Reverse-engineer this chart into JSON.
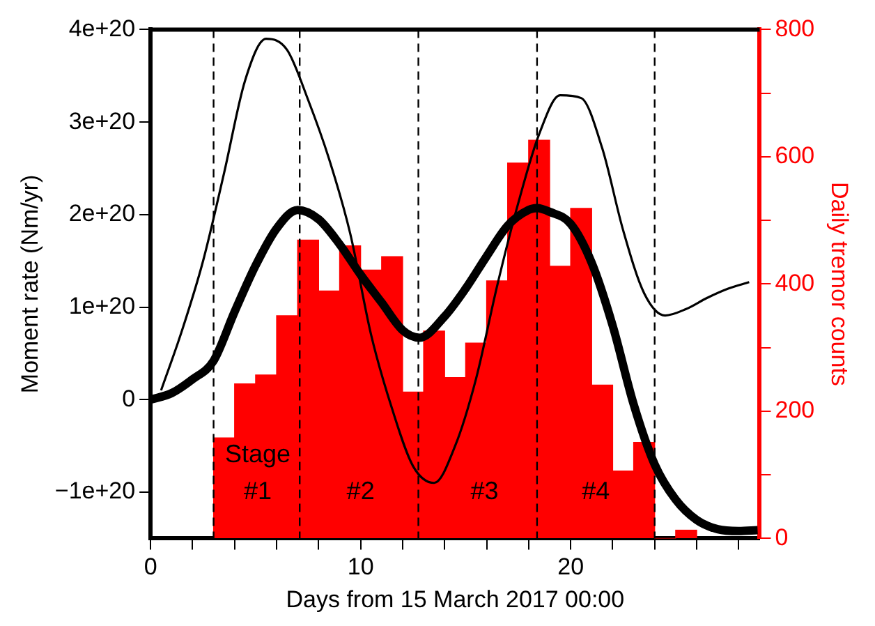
{
  "chart_data": {
    "type": "line",
    "xlabel": "Days from 15 March 2017 00:00",
    "ylabel": "Moment rate (Nm/yr)",
    "y2label": "Daily tremor counts",
    "xlim": [
      0,
      29
    ],
    "xticks": [
      0,
      {
        "value": 2,
        "label": null
      },
      {
        "value": 4,
        "label": null
      },
      {
        "value": 6,
        "label": null
      },
      {
        "value": 8,
        "label": null
      },
      10,
      {
        "value": 12,
        "label": null
      },
      {
        "value": 14,
        "label": null
      },
      {
        "value": 16,
        "label": null
      },
      {
        "value": 18,
        "label": null
      },
      20,
      {
        "value": 22,
        "label": null
      },
      {
        "value": 24,
        "label": null
      },
      {
        "value": 26,
        "label": null
      },
      {
        "value": 28,
        "label": null
      }
    ],
    "ylim": [
      -1.5e+20,
      4e+20
    ],
    "yticks": [
      {
        "value": -1e+20,
        "label": "−1e+20"
      },
      {
        "value": 0,
        "label": "0"
      },
      {
        "value": 1e+20,
        "label": "1e+20"
      },
      {
        "value": 2e+20,
        "label": "2e+20"
      },
      {
        "value": 3e+20,
        "label": "3e+20"
      },
      {
        "value": 4e+20,
        "label": "4e+20"
      }
    ],
    "y2lim": [
      0,
      800
    ],
    "y2ticks": [
      0,
      {
        "value": 100,
        "label": null
      },
      200,
      {
        "value": 300,
        "label": null
      },
      400,
      {
        "value": 500,
        "label": null
      },
      600,
      {
        "value": 700,
        "label": null
      },
      800
    ],
    "series": [
      {
        "type": "bar",
        "axis": "y2",
        "color": "#ff0000",
        "x": [
          3.5,
          4.5,
          5.5,
          6.5,
          7.5,
          8.5,
          9.5,
          10.5,
          11.5,
          12.5,
          13.5,
          14.5,
          15.5,
          16.5,
          17.5,
          18.5,
          19.5,
          20.5,
          21.5,
          22.5,
          23.5,
          24.5,
          25.5
        ],
        "values": [
          158,
          243,
          257,
          350,
          469,
          389,
          460,
          422,
          443,
          230,
          326,
          253,
          307,
          405,
          590,
          626,
          428,
          519,
          241,
          106,
          151,
          0,
          13
        ]
      },
      {
        "color": "#000000",
        "x": [
          0.5,
          1.5,
          2.5,
          3.5,
          4.5,
          5.5,
          6.5,
          7.5,
          8.5,
          9.5,
          10.5,
          11.5,
          12.5,
          13.5,
          14.5,
          15.5,
          16.5,
          17.5,
          18.5,
          19.5,
          20.5,
          21.5,
          22.5,
          23.5,
          24.5,
          25.5,
          26.5,
          27.5,
          28.5
        ],
        "values": [
          1e+19,
          7.5e+19,
          1.5e+20,
          2.45e+20,
          3.45e+20,
          3.9e+20,
          3.78e+20,
          3.24e+20,
          2.6e+20,
          1.8e+20,
          7e+19,
          -1e+19,
          -7.2e+19,
          -9e+19,
          -5e+19,
          2.3e+19,
          1.23e+20,
          2.12e+20,
          2.87e+20,
          3.29e+20,
          3.26e+20,
          2.72e+20,
          1.83e+20,
          1.15e+20,
          9.1e+19,
          9.8e+19,
          1.1e+20,
          1.2e+20,
          1.27e+20
        ]
      },
      {
        "color": "#000000",
        "x": [
          0,
          1,
          2,
          3,
          4,
          5,
          6,
          7,
          8,
          9,
          10,
          11,
          12,
          12.8,
          14,
          15,
          16,
          17,
          18,
          18.4,
          19,
          20,
          21,
          22,
          23,
          24,
          25,
          26,
          27,
          28,
          28.9
        ],
        "values": [
          0,
          7e+18,
          2.2e+19,
          4.2e+19,
          9.5e+19,
          1.45e+20,
          1.85e+20,
          2.05e+20,
          1.95e+20,
          1.68e+20,
          1.35e+20,
          1.05e+20,
          7.5e+19,
          6.7e+19,
          9e+19,
          1.2e+20,
          1.55e+20,
          1.88e+20,
          2.05e+20,
          2.07e+20,
          2.03e+20,
          1.9e+20,
          1.48e+20,
          8e+19,
          -5e+18,
          -7e+19,
          -1.08e+20,
          -1.3e+20,
          -1.4e+20,
          -1.42e+20,
          -1.41e+20
        ]
      }
    ],
    "ref_lines": [
      {
        "axis": "x",
        "value": 3,
        "color": "#000000",
        "line_style": "dashed"
      },
      {
        "axis": "x",
        "value": 7.1,
        "color": "#000000",
        "line_style": "dashed"
      },
      {
        "axis": "x",
        "value": 12.75,
        "color": "#000000",
        "line_style": "dashed"
      },
      {
        "axis": "x",
        "value": 18.4,
        "color": "#000000",
        "line_style": "dashed"
      },
      {
        "axis": "x",
        "value": 24,
        "color": "#000000",
        "line_style": "dashed"
      }
    ],
    "annotations": [
      {
        "text": "Stage",
        "x": 5.1,
        "y": -6e+19
      },
      {
        "text": "#1",
        "x": 5.1,
        "y": -1e+20
      },
      {
        "text": "#2",
        "x": 10,
        "y": -1e+20
      },
      {
        "text": "#3",
        "x": 15.9,
        "y": -1e+20
      },
      {
        "text": "#4",
        "x": 21.2,
        "y": -1e+20
      }
    ],
    "grid": false,
    "legend": false,
    "marker": "none"
  }
}
